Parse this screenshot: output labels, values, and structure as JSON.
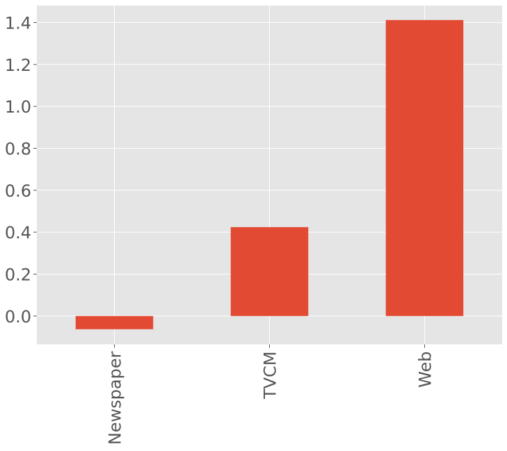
{
  "chart_data": {
    "type": "bar",
    "categories": [
      "Newspaper",
      "TVCM",
      "Web"
    ],
    "values": [
      -0.063,
      0.424,
      1.412
    ],
    "title": "",
    "xlabel": "",
    "ylabel": "",
    "ylim": [
      -0.135,
      1.481
    ],
    "yticks": [
      "0.0",
      "0.2",
      "0.4",
      "0.6",
      "0.8",
      "1.0",
      "1.2",
      "1.4"
    ],
    "grid": true,
    "style": "ggplot",
    "bar_color": "#E24A33",
    "background_color": "#E5E5E5"
  }
}
